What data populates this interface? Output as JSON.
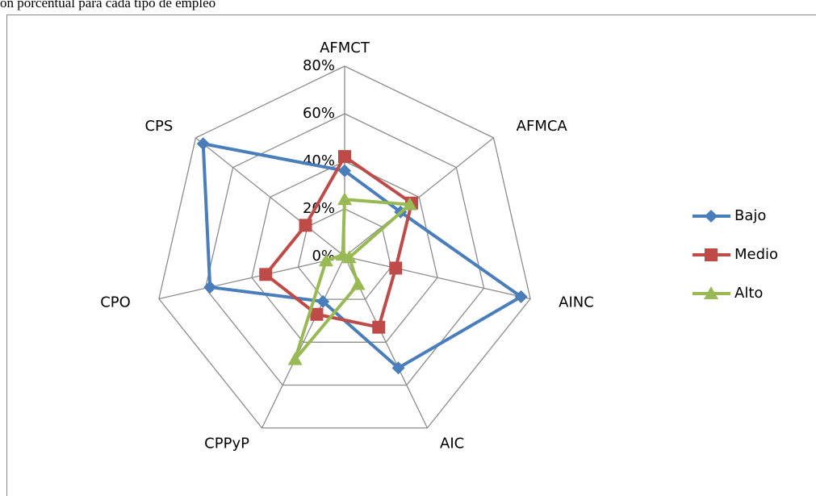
{
  "chart_data": {
    "type": "radar",
    "title": "ón porcentual para cada tipo de empleo",
    "categories": [
      "AFMCT",
      "AFMCA",
      "AINC",
      "AIC",
      "CPPyP",
      "CPO",
      "CPS"
    ],
    "series": [
      {
        "name": "Bajo",
        "color": "#4a7ebb",
        "marker": "diamond",
        "values": [
          36,
          30,
          76,
          52,
          21,
          58,
          76
        ]
      },
      {
        "name": "Medio",
        "color": "#be4b48",
        "marker": "square",
        "values": [
          42,
          36,
          22,
          33,
          27,
          34,
          21
        ]
      },
      {
        "name": "Alto",
        "color": "#98b954",
        "marker": "triangle",
        "values": [
          24,
          35,
          2,
          13,
          48,
          8,
          1
        ]
      }
    ],
    "ylim": [
      0,
      80
    ],
    "yticks": [
      {
        "value": 0,
        "label": "0%"
      },
      {
        "value": 20,
        "label": "20%"
      },
      {
        "value": 40,
        "label": "40%"
      },
      {
        "value": 60,
        "label": "60%"
      },
      {
        "value": 80,
        "label": "80%"
      }
    ],
    "grid": true,
    "legend": "right"
  }
}
